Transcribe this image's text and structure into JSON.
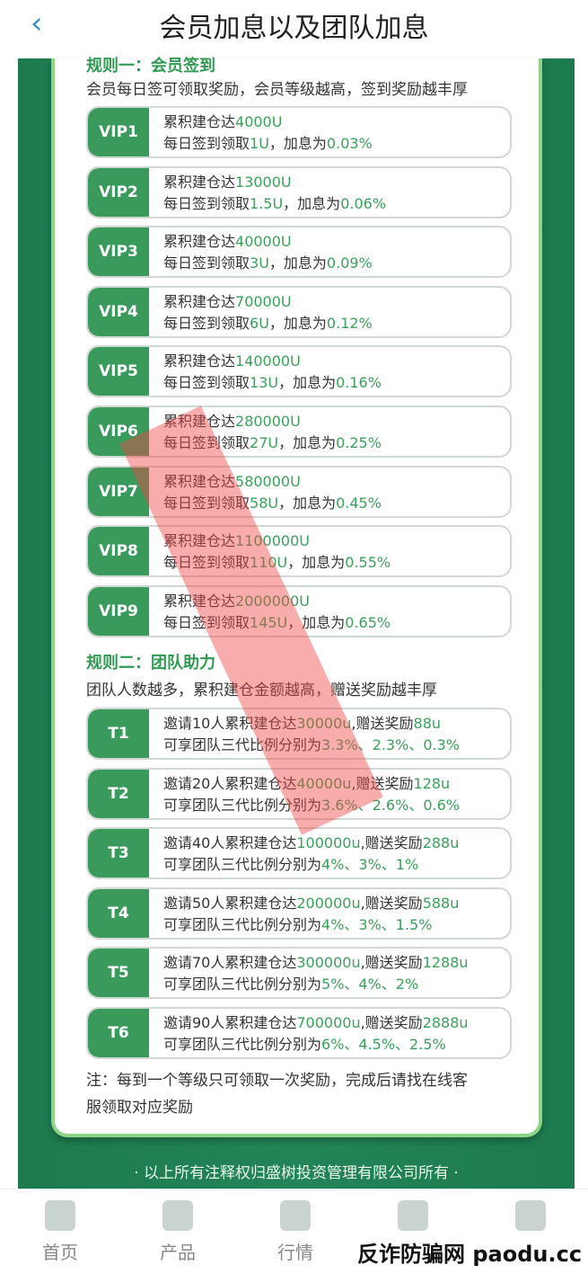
{
  "header": {
    "title": "会员加息以及团队加息",
    "back_icon": "chevron-left-icon"
  },
  "rule1": {
    "heading": "规则一：会员签到",
    "desc": "会员每日签可领取奖励，会员等级越高，签到奖励越丰厚",
    "rows": [
      {
        "label": "VIP1",
        "l1": [
          "累积建仓达",
          "4000U"
        ],
        "l2": [
          "每日签到领取",
          "1U",
          "，加息为",
          "0.03%"
        ]
      },
      {
        "label": "VIP2",
        "l1": [
          "累积建仓达",
          "13000U"
        ],
        "l2": [
          "每日签到领取",
          "1.5U",
          "，加息为",
          "0.06%"
        ]
      },
      {
        "label": "VIP3",
        "l1": [
          "累积建仓达",
          "40000U"
        ],
        "l2": [
          "每日签到领取",
          "3U",
          "，加息为",
          "0.09%"
        ]
      },
      {
        "label": "VIP4",
        "l1": [
          "累积建仓达",
          "70000U"
        ],
        "l2": [
          "每日签到领取",
          "6U",
          "，加息为",
          "0.12%"
        ]
      },
      {
        "label": "VIP5",
        "l1": [
          "累积建仓达",
          "140000U"
        ],
        "l2": [
          "每日签到领取",
          "13U",
          "，加息为",
          "0.16%"
        ]
      },
      {
        "label": "VIP6",
        "l1": [
          "累积建仓达",
          "280000U"
        ],
        "l2": [
          "每日签到领取",
          "27U",
          "，加息为",
          "0.25%"
        ]
      },
      {
        "label": "VIP7",
        "l1": [
          "累积建仓达",
          "580000U"
        ],
        "l2": [
          "每日签到领取",
          "58U",
          "，加息为",
          "0.45%"
        ]
      },
      {
        "label": "VIP8",
        "l1": [
          "累积建仓达",
          "1100000U"
        ],
        "l2": [
          "每日签到领取",
          "110U",
          "，加息为",
          "0.55%"
        ]
      },
      {
        "label": "VIP9",
        "l1": [
          "累积建仓达",
          "2000000U"
        ],
        "l2": [
          "每日签到领取",
          "145U",
          "，加息为",
          "0.65%"
        ]
      }
    ]
  },
  "rule2": {
    "heading": "规则二：团队助力",
    "desc": "团队人数越多，累积建仓金额越高，赠送奖励越丰厚",
    "rows": [
      {
        "label": "T1",
        "l1": [
          "邀请10人累积建仓达",
          "30000u",
          ",赠送奖励",
          "88u"
        ],
        "l2": [
          "可享团队三代比例分别为",
          "3.3%、2.3%、0.3%"
        ]
      },
      {
        "label": "T2",
        "l1": [
          "邀请20人累积建仓达",
          "40000u",
          ",赠送奖励",
          "128u"
        ],
        "l2": [
          "可享团队三代比例分别为",
          "3.6%、2.6%、0.6%"
        ]
      },
      {
        "label": "T3",
        "l1": [
          "邀请40人累积建仓达",
          "100000u",
          ",赠送奖励",
          "288u"
        ],
        "l2": [
          "可享团队三代比例分别为",
          "4%、3%、1%"
        ]
      },
      {
        "label": "T4",
        "l1": [
          "邀请50人累积建仓达",
          "200000u",
          ",赠送奖励",
          "588u"
        ],
        "l2": [
          "可享团队三代比例分别为",
          "4%、3%、1.5%"
        ]
      },
      {
        "label": "T5",
        "l1": [
          "邀请70人累积建仓达",
          "300000u",
          ",赠送奖励",
          "1288u"
        ],
        "l2": [
          "可享团队三代比例分别为",
          "5%、4%、2%"
        ]
      },
      {
        "label": "T6",
        "l1": [
          "邀请90人累积建仓达",
          "700000u",
          ",赠送奖励",
          "2888u"
        ],
        "l2": [
          "可享团队三代比例分别为",
          "6%、4.5%、2.5%"
        ]
      }
    ]
  },
  "note": {
    "line1": "注：每到一个等级只可领取一次奖励，完成后请找在线客",
    "line2": "服领取对应奖励"
  },
  "copyright": "· 以上所有注释权归盛树投资管理有限公司所有 ·",
  "nav": [
    {
      "label": "首页",
      "icon": "home-icon"
    },
    {
      "label": "产品",
      "icon": "product-icon"
    },
    {
      "label": "行情",
      "icon": "chart-icon"
    },
    {
      "label": "",
      "icon": "news-icon"
    },
    {
      "label": "",
      "icon": "user-icon"
    }
  ],
  "watermark": "反诈防骗网 paodu.cc",
  "colors": {
    "brand_green": "#238457",
    "label_green": "#3a9a5c",
    "highlight_green": "#3aa05a"
  }
}
